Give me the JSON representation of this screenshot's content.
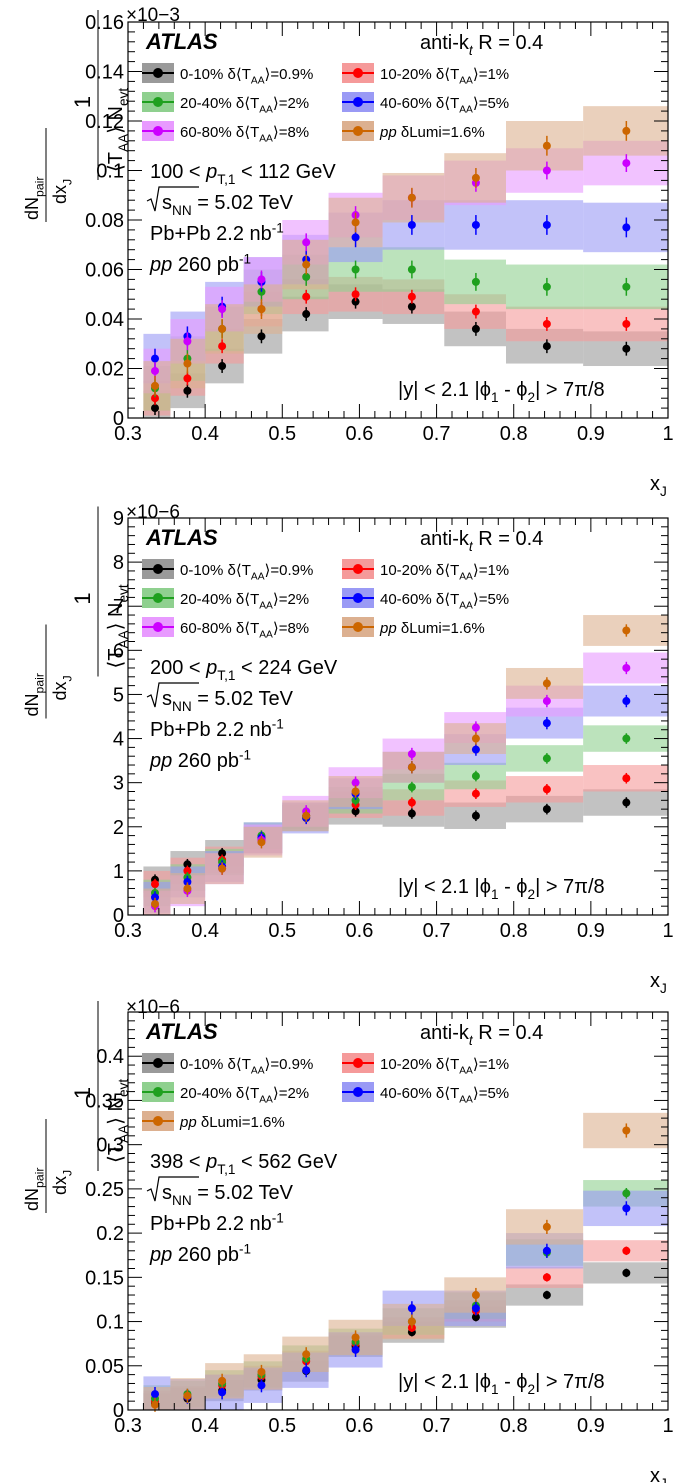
{
  "chart_data": [
    {
      "type": "scatter",
      "multiplier": "×10−3",
      "xlabel": "x",
      "xlabel_sub": "J",
      "xlim": [
        0.3,
        1.0
      ],
      "ylim": [
        0,
        0.16
      ],
      "yticks": [
        "0",
        "0.02",
        "0.04",
        "0.06",
        "0.08",
        "0.1",
        "0.12",
        "0.14",
        "0.16"
      ],
      "xticks": [
        "0.3",
        "0.4",
        "0.5",
        "0.6",
        "0.7",
        "0.8",
        "0.9",
        "1"
      ],
      "ylabel_parts": {
        "numer": "dN",
        "numer_sub": "pair",
        "denom": "dx",
        "denom_sub": "J",
        "one": "1",
        "taa": "T",
        "taa_sub": "AA",
        "nevt": "N",
        "nevt_sub": "evt"
      },
      "atlas": "ATLAS",
      "jet_alg": "anti-k",
      "jet_alg_sub": "t",
      "jet_alg_R": "R = 0.4",
      "pt_range": [
        "100 < ",
        "p",
        "T,1",
        " < 112 GeV"
      ],
      "energy": [
        "s",
        "NN",
        "= 5.02 TeV"
      ],
      "pbpb_lumi": [
        "Pb+Pb 2.2 nb",
        "-1"
      ],
      "pp_lumi": [
        "pp",
        " 260 pb",
        "-1"
      ],
      "cuts": [
        "|y| < 2.1",
        "|ϕ",
        "1",
        "- ϕ",
        "2",
        "| > 7π/8"
      ],
      "legend": [
        {
          "label": "0-10%",
          "unc": "δ⟨T",
          "unc_sub": "AA",
          "unc_end": "⟩=0.9%",
          "color": "#000000",
          "band": "#9a9a9a"
        },
        {
          "label": "10-20%",
          "unc": "δ⟨T",
          "unc_sub": "AA",
          "unc_end": "⟩=1%",
          "color": "#ff0000",
          "band": "#f59a9a"
        },
        {
          "label": "20-40%",
          "unc": "δ⟨T",
          "unc_sub": "AA",
          "unc_end": "⟩=2%",
          "color": "#1fa01f",
          "band": "#8fd08f"
        },
        {
          "label": "40-60%",
          "unc": "δ⟨T",
          "unc_sub": "AA",
          "unc_end": "⟩=5%",
          "color": "#0000ff",
          "band": "#9a9af5"
        },
        {
          "label": "60-80%",
          "unc": "δ⟨T",
          "unc_sub": "AA",
          "unc_end": "⟩=8%",
          "color": "#cc00ff",
          "band": "#e89aff"
        },
        {
          "label": "pp",
          "unc": "δLumi=1.6%",
          "unc_sub": "",
          "unc_end": "",
          "color": "#cc6600",
          "band": "#dcb090"
        }
      ],
      "x": [
        0.335,
        0.377,
        0.422,
        0.473,
        0.531,
        0.595,
        0.668,
        0.751,
        0.843,
        0.946
      ],
      "bin_edges": [
        0.32,
        0.355,
        0.4,
        0.45,
        0.5,
        0.56,
        0.63,
        0.71,
        0.79,
        0.89,
        1.0
      ],
      "series": [
        {
          "name": "0-10%",
          "values": [
            0.004,
            0.011,
            0.021,
            0.033,
            0.042,
            0.047,
            0.045,
            0.036,
            0.029,
            0.028
          ],
          "band": 0.007
        },
        {
          "name": "10-20%",
          "values": [
            0.008,
            0.016,
            0.029,
            0.044,
            0.049,
            0.05,
            0.049,
            0.043,
            0.038,
            0.038
          ],
          "band": 0.007
        },
        {
          "name": "20-40%",
          "values": [
            0.012,
            0.024,
            0.036,
            0.051,
            0.057,
            0.06,
            0.06,
            0.055,
            0.053,
            0.053
          ],
          "band": 0.009
        },
        {
          "name": "40-60%",
          "values": [
            0.024,
            0.033,
            0.045,
            0.055,
            0.064,
            0.073,
            0.078,
            0.078,
            0.078,
            0.077
          ],
          "band": 0.01
        },
        {
          "name": "60-80%",
          "values": [
            0.019,
            0.031,
            0.044,
            0.056,
            0.071,
            0.082,
            0.089,
            0.095,
            0.1,
            0.103
          ],
          "band": 0.009
        },
        {
          "name": "pp",
          "values": [
            0.013,
            0.022,
            0.036,
            0.044,
            0.062,
            0.079,
            0.089,
            0.097,
            0.11,
            0.116
          ],
          "band": 0.01
        }
      ]
    },
    {
      "type": "scatter",
      "multiplier": "×10−6",
      "xlabel": "x",
      "xlabel_sub": "J",
      "xlim": [
        0.3,
        1.0
      ],
      "ylim": [
        0,
        9
      ],
      "yticks": [
        "0",
        "1",
        "2",
        "3",
        "4",
        "5",
        "6",
        "7",
        "8",
        "9"
      ],
      "xticks": [
        "0.3",
        "0.4",
        "0.5",
        "0.6",
        "0.7",
        "0.8",
        "0.9",
        "1"
      ],
      "ylabel_parts": {
        "numer": "dN",
        "numer_sub": "pair",
        "denom": "dx",
        "denom_sub": "J",
        "one": "1",
        "taa": "T",
        "taa_sub": "AA",
        "nevt": "N",
        "nevt_sub": "evt"
      },
      "atlas": "ATLAS",
      "jet_alg": "anti-k",
      "jet_alg_sub": "t",
      "jet_alg_R": "R = 0.4",
      "pt_range": [
        "200 < ",
        "p",
        "T,1",
        " < 224 GeV"
      ],
      "energy": [
        "s",
        "NN",
        "= 5.02 TeV"
      ],
      "pbpb_lumi": [
        "Pb+Pb 2.2 nb",
        "-1"
      ],
      "pp_lumi": [
        "pp",
        " 260 pb",
        "-1"
      ],
      "cuts": [
        "|y| < 2.1",
        "|ϕ",
        "1",
        "- ϕ",
        "2",
        "| > 7π/8"
      ],
      "legend": [
        {
          "label": "0-10%",
          "unc": "δ⟨T",
          "unc_sub": "AA",
          "unc_end": "⟩=0.9%",
          "color": "#000000",
          "band": "#9a9a9a"
        },
        {
          "label": "10-20%",
          "unc": "δ⟨T",
          "unc_sub": "AA",
          "unc_end": "⟩=1%",
          "color": "#ff0000",
          "band": "#f59a9a"
        },
        {
          "label": "20-40%",
          "unc": "δ⟨T",
          "unc_sub": "AA",
          "unc_end": "⟩=2%",
          "color": "#1fa01f",
          "band": "#8fd08f"
        },
        {
          "label": "40-60%",
          "unc": "δ⟨T",
          "unc_sub": "AA",
          "unc_end": "⟩=5%",
          "color": "#0000ff",
          "band": "#9a9af5"
        },
        {
          "label": "60-80%",
          "unc": "δ⟨T",
          "unc_sub": "AA",
          "unc_end": "⟩=8%",
          "color": "#cc00ff",
          "band": "#e89aff"
        },
        {
          "label": "pp",
          "unc": "δLumi=1.6%",
          "unc_sub": "",
          "unc_end": "",
          "color": "#cc6600",
          "band": "#dcb090"
        }
      ],
      "x": [
        0.335,
        0.377,
        0.422,
        0.473,
        0.531,
        0.595,
        0.668,
        0.751,
        0.843,
        0.946
      ],
      "bin_edges": [
        0.32,
        0.355,
        0.4,
        0.45,
        0.5,
        0.56,
        0.63,
        0.71,
        0.79,
        0.89,
        1.0
      ],
      "series": [
        {
          "name": "0-10%",
          "values": [
            0.8,
            1.15,
            1.4,
            1.7,
            2.25,
            2.35,
            2.3,
            2.25,
            2.4,
            2.55
          ],
          "band": 0.3
        },
        {
          "name": "10-20%",
          "values": [
            0.7,
            1.0,
            1.25,
            1.7,
            2.2,
            2.5,
            2.55,
            2.75,
            2.85,
            3.1
          ],
          "band": 0.3
        },
        {
          "name": "20-40%",
          "values": [
            0.5,
            0.85,
            1.2,
            1.8,
            2.2,
            2.6,
            2.9,
            3.15,
            3.55,
            4.0
          ],
          "band": 0.3
        },
        {
          "name": "40-60%",
          "values": [
            0.4,
            0.75,
            1.1,
            1.75,
            2.2,
            2.75,
            3.35,
            3.75,
            4.35,
            4.85
          ],
          "band": 0.35
        },
        {
          "name": "60-80%",
          "values": [
            0.2,
            0.55,
            1.05,
            1.7,
            2.35,
            3.0,
            3.65,
            4.25,
            4.85,
            5.6
          ],
          "band": 0.35
        },
        {
          "name": "pp",
          "values": [
            0.25,
            0.6,
            1.05,
            1.65,
            2.25,
            2.8,
            3.35,
            4.0,
            5.25,
            6.45
          ],
          "band": 0.35
        }
      ]
    },
    {
      "type": "scatter",
      "multiplier": "×10−6",
      "xlabel": "x",
      "xlabel_sub": "J",
      "xlim": [
        0.3,
        1.0
      ],
      "ylim": [
        0,
        0.45
      ],
      "yticks": [
        "0",
        "0.05",
        "0.1",
        "0.15",
        "0.2",
        "0.25",
        "0.3",
        "0.35",
        "0.4"
      ],
      "xticks": [
        "0.3",
        "0.4",
        "0.5",
        "0.6",
        "0.7",
        "0.8",
        "0.9",
        "1"
      ],
      "ylabel_parts": {
        "numer": "dN",
        "numer_sub": "pair",
        "denom": "dx",
        "denom_sub": "J",
        "one": "1",
        "taa": "T",
        "taa_sub": "AA",
        "nevt": "N",
        "nevt_sub": "evt"
      },
      "atlas": "ATLAS",
      "jet_alg": "anti-k",
      "jet_alg_sub": "t",
      "jet_alg_R": "R = 0.4",
      "pt_range": [
        "398 < ",
        "p",
        "T,1",
        " < 562 GeV"
      ],
      "energy": [
        "s",
        "NN",
        "= 5.02 TeV"
      ],
      "pbpb_lumi": [
        "Pb+Pb 2.2 nb",
        "-1"
      ],
      "pp_lumi": [
        "pp",
        " 260 pb",
        "-1"
      ],
      "cuts": [
        "|y| < 2.1",
        "|ϕ",
        "1",
        "- ϕ",
        "2",
        "| > 7π/8"
      ],
      "legend": [
        {
          "label": "0-10%",
          "unc": "δ⟨T",
          "unc_sub": "AA",
          "unc_end": "⟩=0.9%",
          "color": "#000000",
          "band": "#9a9a9a"
        },
        {
          "label": "10-20%",
          "unc": "δ⟨T",
          "unc_sub": "AA",
          "unc_end": "⟩=1%",
          "color": "#ff0000",
          "band": "#f59a9a"
        },
        {
          "label": "20-40%",
          "unc": "δ⟨T",
          "unc_sub": "AA",
          "unc_end": "⟩=2%",
          "color": "#1fa01f",
          "band": "#8fd08f"
        },
        {
          "label": "40-60%",
          "unc": "δ⟨T",
          "unc_sub": "AA",
          "unc_end": "⟩=5%",
          "color": "#0000ff",
          "band": "#9a9af5"
        },
        {
          "label": "pp",
          "unc": "δLumi=1.6%",
          "unc_sub": "",
          "unc_end": "",
          "color": "#cc6600",
          "band": "#dcb090"
        }
      ],
      "x": [
        0.335,
        0.377,
        0.422,
        0.473,
        0.531,
        0.595,
        0.668,
        0.751,
        0.843,
        0.946
      ],
      "bin_edges": [
        0.32,
        0.355,
        0.4,
        0.45,
        0.5,
        0.56,
        0.63,
        0.71,
        0.79,
        0.89,
        1.0
      ],
      "series": [
        {
          "name": "0-10%",
          "values": [
            0.007,
            0.013,
            0.022,
            0.034,
            0.044,
            0.072,
            0.088,
            0.105,
            0.13,
            0.155
          ],
          "band": 0.012
        },
        {
          "name": "10-20%",
          "values": [
            0.01,
            0.015,
            0.028,
            0.038,
            0.055,
            0.075,
            0.093,
            0.112,
            0.15,
            0.18
          ],
          "band": 0.012
        },
        {
          "name": "20-40%",
          "values": [
            0.013,
            0.018,
            0.03,
            0.04,
            0.058,
            0.077,
            0.1,
            0.118,
            0.178,
            0.245
          ],
          "band": 0.015
        },
        {
          "name": "40-60%",
          "values": [
            0.018,
            0.015,
            0.02,
            0.028,
            0.045,
            0.068,
            0.115,
            0.115,
            0.18,
            0.228
          ],
          "band": 0.02
        },
        {
          "name": "pp",
          "values": [
            0.006,
            0.016,
            0.033,
            0.043,
            0.063,
            0.082,
            0.1,
            0.13,
            0.207,
            0.316
          ],
          "band": 0.02
        }
      ]
    }
  ]
}
